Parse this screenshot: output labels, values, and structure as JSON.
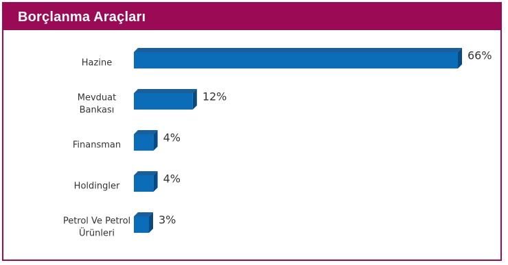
{
  "header": {
    "title": "Borçlanma Araçları"
  },
  "colors": {
    "header_bg": "#9b0a55",
    "bar_front": "#0b6cb8",
    "bar_top": "#1a5f9c",
    "bar_side": "#084a82"
  },
  "chart_data": {
    "type": "bar",
    "orientation": "horizontal",
    "categories": [
      "Hazine",
      "Mevduat Bankası",
      "Finansman",
      "Holdingler",
      "Petrol Ve Petrol Ürünleri"
    ],
    "category_lines": [
      [
        "Hazine"
      ],
      [
        "Mevduat",
        "Bankası"
      ],
      [
        "Finansman"
      ],
      [
        "Holdingler"
      ],
      [
        "Petrol Ve Petrol",
        "Ürünleri"
      ]
    ],
    "values": [
      66,
      12,
      4,
      4,
      3
    ],
    "value_labels": [
      "66%",
      "12%",
      "4%",
      "4%",
      "3%"
    ],
    "unit": "%",
    "xlim": [
      0,
      66
    ],
    "grid": false,
    "legend": false
  }
}
